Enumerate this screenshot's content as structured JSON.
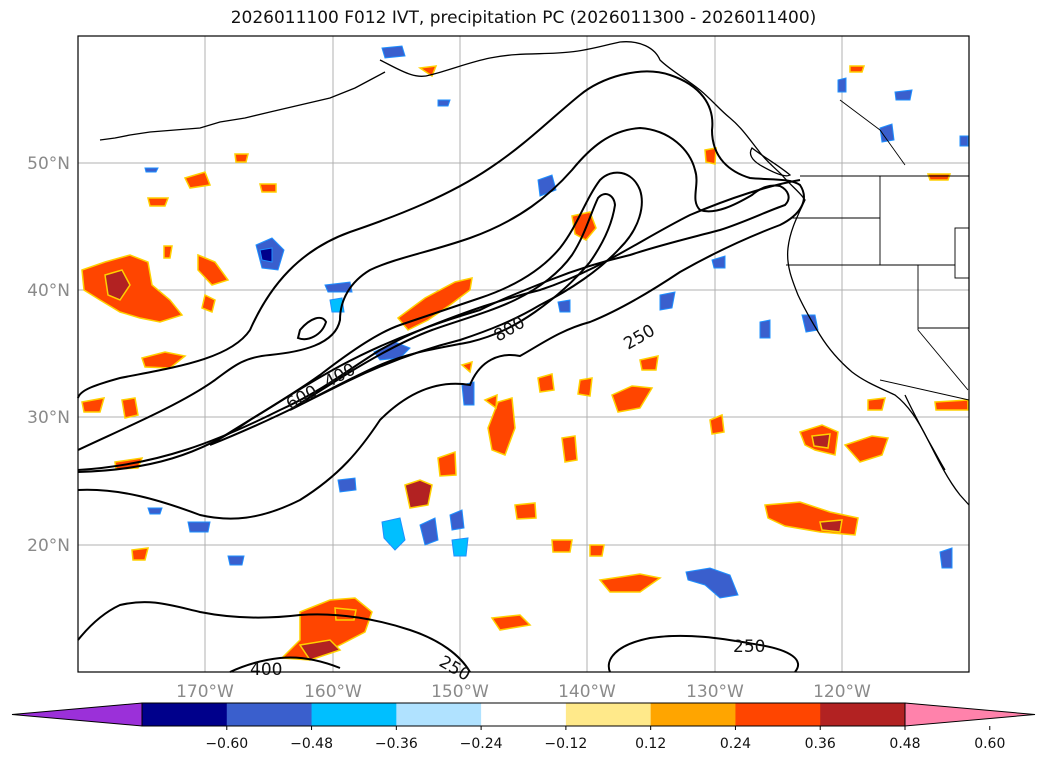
{
  "title": "2026011100 F012 IVT, precipitation PC (2026011300 - 2026011400)",
  "map": {
    "lat_labels": [
      "50°N",
      "40°N",
      "30°N",
      "20°N"
    ],
    "lon_labels": [
      "170°W",
      "160°W",
      "150°W",
      "140°W",
      "130°W",
      "120°W"
    ],
    "ivt_contour_labels": [
      "800",
      "600",
      "400",
      "250",
      "250",
      "400",
      "250"
    ],
    "colors": {
      "coast": "#000000",
      "grid": "#b0b0b0",
      "contour": "#000000"
    }
  },
  "colorbar": {
    "ticks": [
      "−0.60",
      "−0.48",
      "−0.36",
      "−0.24",
      "−0.12",
      "0.12",
      "0.24",
      "0.36",
      "0.48",
      "0.60"
    ],
    "colors": [
      "#9b30d9",
      "#00008b",
      "#3a5fcd",
      "#00bfff",
      "#b0e2ff",
      "#ffffff",
      "#ffe98a",
      "#ffa500",
      "#ff4500",
      "#b22222",
      "#ff82ab"
    ]
  }
}
